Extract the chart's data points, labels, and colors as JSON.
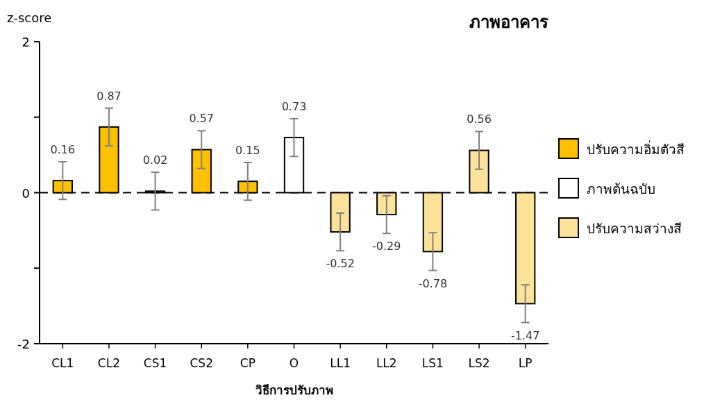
{
  "chart_data": {
    "type": "bar",
    "title": "ภาพอาคาร",
    "xlabel": "วิธีการปรับภาพ",
    "ylabel": "z-score",
    "categories": [
      "CL1",
      "CL2",
      "CS1",
      "CS2",
      "CP",
      "O",
      "LL1",
      "LL2",
      "LS1",
      "LS2",
      "LP"
    ],
    "series": [
      {
        "name": "ปรับความอิ่มตัวสี",
        "color": "#ffc000",
        "values": [
          0.16,
          0.87,
          0.02,
          0.57,
          0.15,
          null,
          null,
          null,
          null,
          null,
          null
        ],
        "errors": [
          0.25,
          0.25,
          0.25,
          0.25,
          0.25,
          null,
          null,
          null,
          null,
          null,
          null
        ],
        "value_labels": [
          "0.16",
          "0.87",
          "0.02",
          "0.57",
          "0.15",
          null,
          null,
          null,
          null,
          null,
          null
        ]
      },
      {
        "name": "ภาพต้นฉบับ",
        "color": "#ffffff",
        "values": [
          null,
          null,
          null,
          null,
          null,
          0.73,
          null,
          null,
          null,
          null,
          null
        ],
        "errors": [
          null,
          null,
          null,
          null,
          null,
          0.25,
          null,
          null,
          null,
          null,
          null
        ],
        "value_labels": [
          null,
          null,
          null,
          null,
          null,
          "0.73",
          null,
          null,
          null,
          null,
          null
        ]
      },
      {
        "name": "ปรับความสว่างสี",
        "color": "#fde39a",
        "values": [
          null,
          null,
          null,
          null,
          null,
          null,
          -0.52,
          -0.29,
          -0.78,
          0.56,
          -1.47
        ],
        "errors": [
          null,
          null,
          null,
          null,
          null,
          null,
          0.25,
          0.25,
          0.25,
          0.25,
          0.25
        ],
        "value_labels": [
          null,
          null,
          null,
          null,
          null,
          null,
          "-0.52",
          "-0.29",
          "-0.78",
          "0.56",
          "-1.47"
        ]
      }
    ],
    "ylim": [
      -2,
      2
    ],
    "yticks": [
      -2,
      {
        "value": -1,
        "label": null
      },
      0,
      {
        "value": 1,
        "label": null
      },
      2
    ],
    "ref_lines": [
      {
        "axis": "y",
        "value": 0,
        "line_style": "dashed"
      }
    ],
    "legend": "right"
  }
}
